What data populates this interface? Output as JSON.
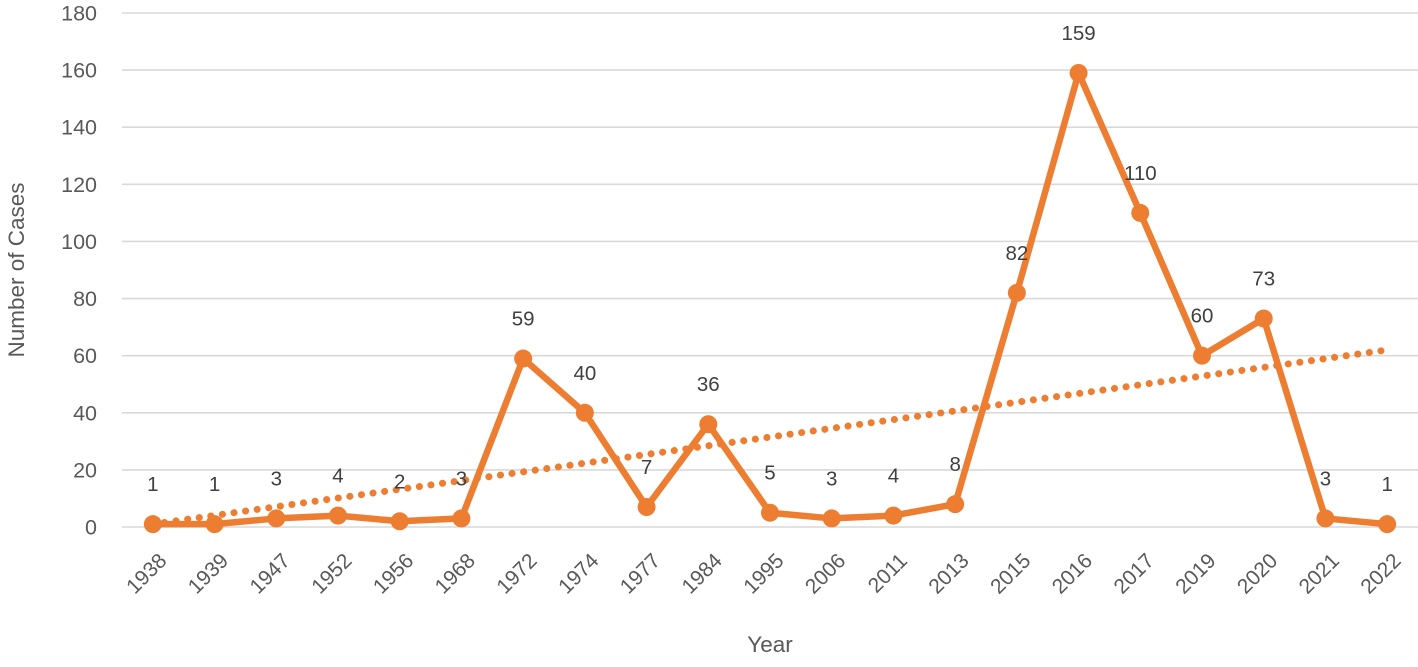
{
  "chart_data": {
    "type": "line",
    "title": "",
    "xlabel": "Year",
    "ylabel": "Number of Cases",
    "categories": [
      "1938",
      "1939",
      "1947",
      "1952",
      "1956",
      "1968",
      "1972",
      "1974",
      "1977",
      "1984",
      "1995",
      "2006",
      "2011",
      "2013",
      "2015",
      "2016",
      "2017",
      "2019",
      "2020",
      "2021",
      "2022"
    ],
    "series": [
      {
        "name": "Number of Cases",
        "values": [
          1,
          1,
          3,
          4,
          2,
          3,
          59,
          40,
          7,
          36,
          5,
          3,
          4,
          8,
          82,
          159,
          110,
          60,
          73,
          3,
          1
        ],
        "color": "#ED7D31",
        "marker": "circle",
        "data_labels_visible": true
      }
    ],
    "trendline": {
      "type": "linear",
      "style": "dotted",
      "color": "#ED7D31",
      "start_value": 1,
      "end_value": 62
    },
    "ylim": [
      0,
      180
    ],
    "ytick_step": 20,
    "ytick_labels": [
      "0",
      "20",
      "40",
      "60",
      "80",
      "100",
      "120",
      "140",
      "160",
      "180"
    ],
    "grid": true,
    "legend": "none",
    "colors": {
      "series": "#ED7D31",
      "gridline": "#D9D9D9",
      "axis_text": "#595959",
      "data_label": "#404040",
      "background": "#FFFFFF"
    }
  }
}
